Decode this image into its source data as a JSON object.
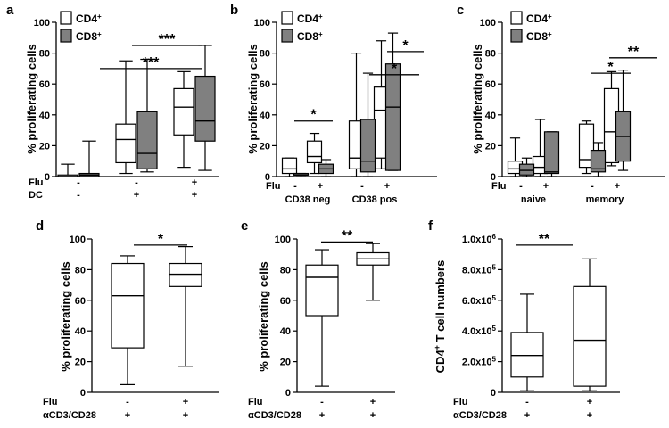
{
  "colors": {
    "cd4": "#ffffff",
    "cd8": "#808080",
    "stroke": "#000000"
  },
  "chart_data": [
    {
      "id": "a",
      "type": "box",
      "letter": "a",
      "ylabel": "% proliferating cells",
      "ylim": [
        0,
        100
      ],
      "yticks": [
        "0",
        "20",
        "40",
        "60",
        "80",
        "100"
      ],
      "ytickvals": [
        0,
        20,
        40,
        60,
        80,
        100
      ],
      "legend": [
        {
          "base": "CD4",
          "sup": "+"
        },
        {
          "base": "CD8",
          "sup": "+"
        }
      ],
      "conditions": [
        {
          "label": "Flu",
          "values": [
            "-",
            "-",
            "+"
          ]
        },
        {
          "label": "DC",
          "values": [
            "-",
            "+",
            "+"
          ]
        }
      ],
      "groups": [
        {
          "label": ""
        },
        {
          "label": ""
        },
        {
          "label": ""
        }
      ],
      "series": [
        {
          "name": "CD4+",
          "boxes": [
            {
              "min": 0,
              "q1": 0,
              "median": 0,
              "q3": 1,
              "max": 8
            },
            {
              "min": 2,
              "q1": 9,
              "median": 24,
              "q3": 34,
              "max": 75
            },
            {
              "min": 6,
              "q1": 27,
              "median": 45,
              "q3": 57,
              "max": 68
            }
          ]
        },
        {
          "name": "CD8+",
          "boxes": [
            {
              "min": 0,
              "q1": 0,
              "median": 1,
              "q3": 2,
              "max": 23
            },
            {
              "min": 3,
              "q1": 5,
              "median": 15,
              "q3": 42,
              "max": 76
            },
            {
              "min": 4,
              "q1": 23,
              "median": 36,
              "q3": 65,
              "max": 85
            }
          ]
        }
      ],
      "significance": [
        {
          "label": "***",
          "from": 1,
          "to": 2,
          "y": 85
        },
        {
          "label": "***",
          "from": 1,
          "to": 2,
          "y": 70
        }
      ]
    },
    {
      "id": "b",
      "type": "box",
      "letter": "b",
      "ylabel": "% proliferating cells",
      "ylim": [
        0,
        100
      ],
      "yticks": [
        "0",
        "20",
        "40",
        "60",
        "80",
        "100"
      ],
      "ytickvals": [
        0,
        20,
        40,
        60,
        80,
        100
      ],
      "legend": [
        {
          "base": "CD4",
          "sup": "+"
        },
        {
          "base": "CD8",
          "sup": "+"
        }
      ],
      "conditions": [
        {
          "label": "Flu",
          "values": [
            "-",
            "+",
            "-",
            "+"
          ]
        }
      ],
      "groups": [
        {
          "label": "CD38 neg"
        },
        {
          "label": "CD38 pos"
        }
      ],
      "series": [
        {
          "name": "CD4+",
          "boxes": [
            {
              "min": 0,
              "q1": 2,
              "median": 5,
              "q3": 12,
              "max": 12
            },
            {
              "min": 2,
              "q1": 9,
              "median": 13,
              "q3": 23,
              "max": 28
            },
            {
              "min": 0,
              "q1": 5,
              "median": 12,
              "q3": 36,
              "max": 80
            },
            {
              "min": 5,
              "q1": 12,
              "median": 43,
              "q3": 58,
              "max": 88
            }
          ]
        },
        {
          "name": "CD8+",
          "boxes": [
            {
              "min": 0,
              "q1": 1,
              "median": 1,
              "q3": 2,
              "max": 2
            },
            {
              "min": 0,
              "q1": 2,
              "median": 5,
              "q3": 8,
              "max": 11
            },
            {
              "min": 0,
              "q1": 3,
              "median": 10,
              "q3": 37,
              "max": 67
            },
            {
              "min": 4,
              "q1": 4,
              "median": 45,
              "q3": 73,
              "max": 93
            }
          ]
        }
      ],
      "significance": [
        {
          "label": "*",
          "from": 0,
          "to": 1,
          "y": 36
        },
        {
          "label": "*",
          "from": 2,
          "to": 3,
          "y": 66
        },
        {
          "label": "*",
          "from": 2,
          "to": 3,
          "y": 81
        }
      ]
    },
    {
      "id": "c",
      "type": "box",
      "letter": "c",
      "ylabel": "% proliferating cells",
      "ylim": [
        0,
        100
      ],
      "yticks": [
        "0",
        "20",
        "40",
        "60",
        "80",
        "100"
      ],
      "ytickvals": [
        0,
        20,
        40,
        60,
        80,
        100
      ],
      "legend": [
        {
          "base": "CD4",
          "sup": "+"
        },
        {
          "base": "CD8",
          "sup": "+"
        }
      ],
      "conditions": [
        {
          "label": "Flu",
          "values": [
            "-",
            "+",
            "-",
            "+"
          ]
        }
      ],
      "groups": [
        {
          "label": "naive"
        },
        {
          "label": "memory"
        }
      ],
      "series": [
        {
          "name": "CD4+",
          "boxes": [
            {
              "min": 0,
              "q1": 2,
              "median": 5,
              "q3": 10,
              "max": 25
            },
            {
              "min": 0,
              "q1": 2,
              "median": 6,
              "q3": 13,
              "max": 37
            },
            {
              "min": 2,
              "q1": 6,
              "median": 11,
              "q3": 34,
              "max": 36
            },
            {
              "min": 7,
              "q1": 9,
              "median": 29,
              "q3": 57,
              "max": 68
            }
          ]
        },
        {
          "name": "CD8+",
          "boxes": [
            {
              "min": 0,
              "q1": 1,
              "median": 4,
              "q3": 8,
              "max": 12
            },
            {
              "min": 0,
              "q1": 2,
              "median": 3,
              "q3": 29,
              "max": 29
            },
            {
              "min": 0,
              "q1": 3,
              "median": 5,
              "q3": 17,
              "max": 22
            },
            {
              "min": 4,
              "q1": 10,
              "median": 26,
              "q3": 42,
              "max": 69
            }
          ]
        }
      ],
      "significance": [
        {
          "label": "*",
          "from": 2,
          "to": 3,
          "y": 67
        },
        {
          "label": "**",
          "from": 2,
          "to": 3,
          "y": 77
        }
      ]
    },
    {
      "id": "d",
      "type": "box",
      "letter": "d",
      "ylabel": "% proliferating cells",
      "ylim": [
        0,
        100
      ],
      "yticks": [
        "0",
        "20",
        "40",
        "60",
        "80",
        "100"
      ],
      "ytickvals": [
        0,
        20,
        40,
        60,
        80,
        100
      ],
      "legend": [],
      "conditions": [
        {
          "label": "Flu",
          "values": [
            "-",
            "+"
          ]
        },
        {
          "label": "αCD3/CD28",
          "values": [
            "+",
            "+"
          ]
        }
      ],
      "groups": [
        {
          "label": ""
        },
        {
          "label": ""
        }
      ],
      "series": [
        {
          "name": "CD4+",
          "boxes": [
            {
              "min": 5,
              "q1": 29,
              "median": 63,
              "q3": 84,
              "max": 89
            },
            {
              "min": 17,
              "q1": 69,
              "median": 77,
              "q3": 84,
              "max": 95
            }
          ]
        }
      ],
      "significance": [
        {
          "label": "*",
          "from": 0,
          "to": 1,
          "y": 96
        }
      ]
    },
    {
      "id": "e",
      "type": "box",
      "letter": "e",
      "ylabel": "% proliferating cells",
      "ylim": [
        0,
        100
      ],
      "yticks": [
        "0",
        "20",
        "40",
        "60",
        "80",
        "100"
      ],
      "ytickvals": [
        0,
        20,
        40,
        60,
        80,
        100
      ],
      "legend": [],
      "conditions": [
        {
          "label": "Flu",
          "values": [
            "-",
            "+"
          ]
        },
        {
          "label": "αCD3/CD28",
          "values": [
            "+",
            "+"
          ]
        }
      ],
      "groups": [
        {
          "label": ""
        },
        {
          "label": ""
        }
      ],
      "series": [
        {
          "name": "CD4+",
          "boxes": [
            {
              "min": 4,
              "q1": 50,
              "median": 75,
              "q3": 83,
              "max": 93
            },
            {
              "min": 60,
              "q1": 83,
              "median": 87,
              "q3": 91,
              "max": 97
            }
          ]
        }
      ],
      "significance": [
        {
          "label": "**",
          "from": 0,
          "to": 1,
          "y": 98
        }
      ]
    },
    {
      "id": "f",
      "type": "box",
      "letter": "f",
      "ylabel_parts": [
        {
          "t": "CD4"
        },
        {
          "t": "+",
          "sup": true
        },
        {
          "t": " T cell numbers"
        }
      ],
      "ylim": [
        0,
        1000000
      ],
      "yticks": [
        "0",
        "2.0x10",
        "4.0x10",
        "6.0x10",
        "8.0x10",
        "1.0x10"
      ],
      "ytick_exps": [
        "",
        "5",
        "5",
        "5",
        "5",
        "6"
      ],
      "ytickvals": [
        0,
        200000,
        400000,
        600000,
        800000,
        1000000
      ],
      "legend": [],
      "conditions": [
        {
          "label": "Flu",
          "values": [
            "-",
            "+"
          ]
        },
        {
          "label": "αCD3/CD28",
          "values": [
            "+",
            "+"
          ]
        }
      ],
      "groups": [
        {
          "label": ""
        },
        {
          "label": ""
        }
      ],
      "series": [
        {
          "name": "CD4+",
          "boxes": [
            {
              "min": 10000,
              "q1": 100000,
              "median": 240000,
              "q3": 390000,
              "max": 640000
            },
            {
              "min": 10000,
              "q1": 40000,
              "median": 340000,
              "q3": 690000,
              "max": 870000
            }
          ]
        }
      ],
      "significance": [
        {
          "label": "**",
          "from": 0,
          "to": 1,
          "y": 960000
        }
      ]
    }
  ]
}
